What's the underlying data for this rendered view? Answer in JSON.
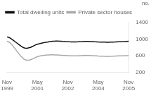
{
  "chart_data": {
    "type": "line",
    "ylabel": "no.",
    "categories": [
      "Nov\n1999",
      null,
      null,
      null,
      null,
      null,
      null,
      null,
      null,
      null,
      null,
      null,
      null,
      null,
      null,
      null,
      null,
      null,
      "May\n2001",
      null,
      null,
      null,
      null,
      null,
      null,
      null,
      null,
      null,
      null,
      null,
      null,
      null,
      null,
      null,
      null,
      null,
      "Nov\n2002",
      null,
      null,
      null,
      null,
      null,
      null,
      null,
      null,
      null,
      null,
      null,
      null,
      null,
      null,
      null,
      null,
      null,
      "May\n2004",
      null,
      null,
      null,
      null,
      null,
      null,
      null,
      null,
      null,
      null,
      null,
      null,
      null,
      null,
      null,
      null,
      null,
      "Nov\n2005"
    ],
    "series": [
      {
        "name": "Total dwelling units",
        "color": "#111111",
        "values": [
          1050,
          1040,
          1020,
          990,
          960,
          930,
          900,
          870,
          840,
          810,
          790,
          780,
          780,
          790,
          800,
          820,
          840,
          860,
          875,
          885,
          895,
          905,
          915,
          920,
          925,
          935,
          940,
          945,
          948,
          950,
          950,
          948,
          945,
          942,
          940,
          937,
          935,
          932,
          930,
          928,
          928,
          930,
          932,
          935,
          937,
          940,
          942,
          943,
          942,
          940,
          938,
          935,
          932,
          930,
          928,
          927,
          926,
          925,
          924,
          923,
          923,
          924,
          925,
          927,
          928,
          930,
          932,
          933,
          935,
          937,
          940,
          943,
          946
        ]
      },
      {
        "name": "Private sector houses",
        "color": "#aaaaaa",
        "values": [
          950,
          930,
          900,
          860,
          810,
          760,
          700,
          650,
          600,
          560,
          520,
          500,
          490,
          495,
          505,
          520,
          540,
          560,
          578,
          590,
          598,
          605,
          610,
          614,
          617,
          620,
          622,
          622,
          620,
          618,
          616,
          613,
          610,
          608,
          606,
          604,
          602,
          600,
          598,
          596,
          596,
          597,
          599,
          601,
          603,
          605,
          607,
          608,
          607,
          605,
          603,
          600,
          597,
          595,
          592,
          590,
          588,
          587,
          586,
          585,
          585,
          586,
          587,
          589,
          591,
          593,
          595,
          597,
          598,
          599,
          600,
          601,
          602
        ]
      }
    ],
    "ylim": [
      200,
      1400
    ],
    "yticks": [
      200,
      600,
      1000,
      1400
    ],
    "grid": false,
    "legend": "upper left"
  }
}
